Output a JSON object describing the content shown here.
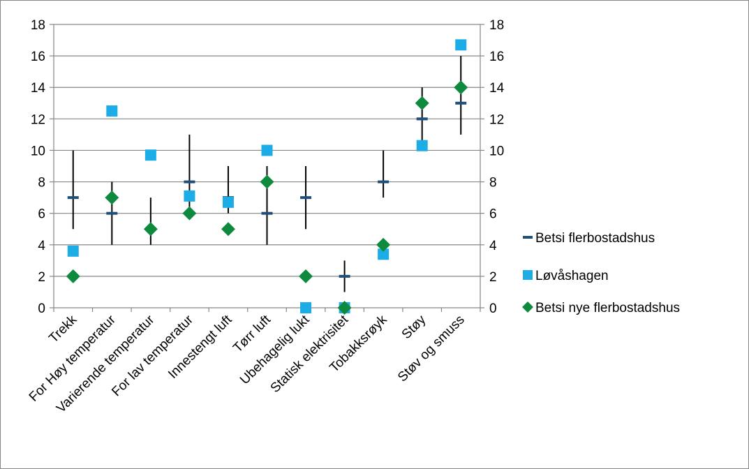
{
  "chart_data": {
    "type": "scatter",
    "categories": [
      "Trekk",
      "For Høy temperatur",
      "Varierende temperatur",
      "For lav temperatur",
      "Innestengt luft",
      "Tørr luft",
      "Ubehagelig lukt",
      "Statisk elektrisitet",
      "Tobakksrøyk",
      "Støy",
      "Støv og smuss"
    ],
    "y_ticks": [
      "0",
      "2",
      "4",
      "6",
      "8",
      "10",
      "12",
      "14",
      "16",
      "18"
    ],
    "ylim": [
      0,
      18
    ],
    "y2lim": [
      0,
      18
    ],
    "grid": true,
    "legend_position": "right",
    "series": [
      {
        "name": "Betsi flerbostadshus",
        "marker": "dash",
        "color": "#1f4e79",
        "values": [
          7,
          6,
          null,
          8,
          7,
          6,
          7,
          2,
          8,
          12,
          13
        ],
        "error_low": [
          5,
          4,
          4,
          6,
          6,
          4,
          5,
          1,
          7,
          10,
          11
        ],
        "error_high": [
          10,
          8,
          7,
          11,
          9,
          9,
          9,
          3,
          10,
          14,
          16
        ]
      },
      {
        "name": "Løvåshagen",
        "marker": "square",
        "color": "#1cace6",
        "values": [
          3.6,
          12.5,
          9.7,
          7.1,
          6.7,
          10,
          0,
          0,
          3.4,
          10.3,
          16.7
        ]
      },
      {
        "name": "Betsi nye flerbostadshus",
        "marker": "diamond",
        "color": "#0e8a3e",
        "values": [
          2,
          7,
          5,
          6,
          5,
          8,
          2,
          0,
          4,
          13,
          14
        ]
      }
    ]
  }
}
